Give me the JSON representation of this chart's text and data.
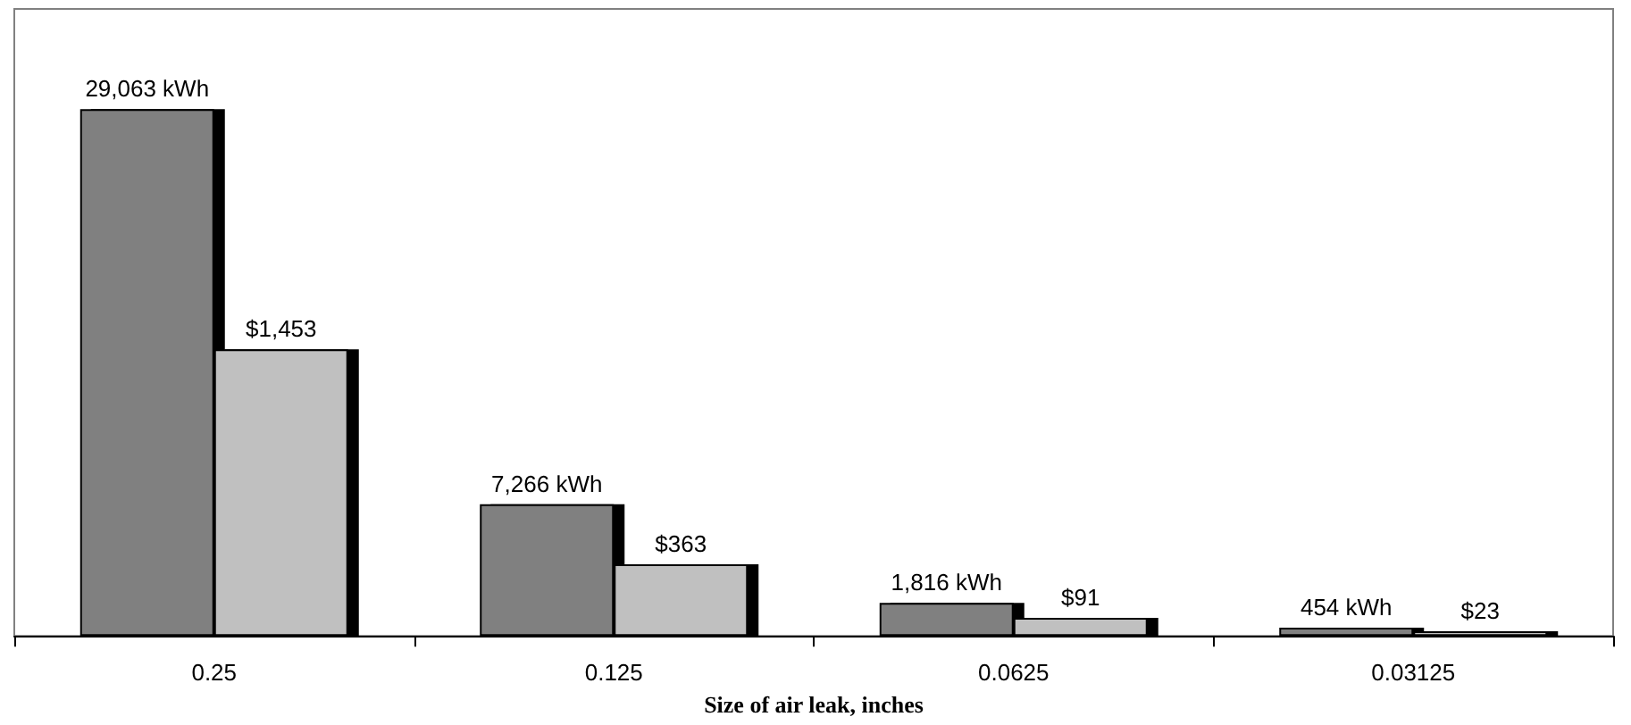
{
  "chart_data": {
    "type": "bar",
    "xlabel": "Size of air leak, inches",
    "categories": [
      "0.25",
      "0.125",
      "0.0625",
      "0.03125"
    ],
    "series": [
      {
        "color": "#808080",
        "values": [
          29063,
          7266,
          1816,
          454
        ],
        "value_labels": [
          "29,063 kWh",
          "7,266 kWh",
          "1,816 kWh",
          "454 kWh"
        ]
      },
      {
        "color": "#c0c0c0",
        "axis": "y2",
        "values": [
          1453,
          363,
          91,
          23
        ],
        "value_labels": [
          "$1,453",
          "$363",
          "$91",
          "$23"
        ]
      }
    ],
    "ylim": [
      0,
      34600
    ],
    "y2lim": [
      0,
      3180
    ],
    "tick_labels": "x"
  }
}
